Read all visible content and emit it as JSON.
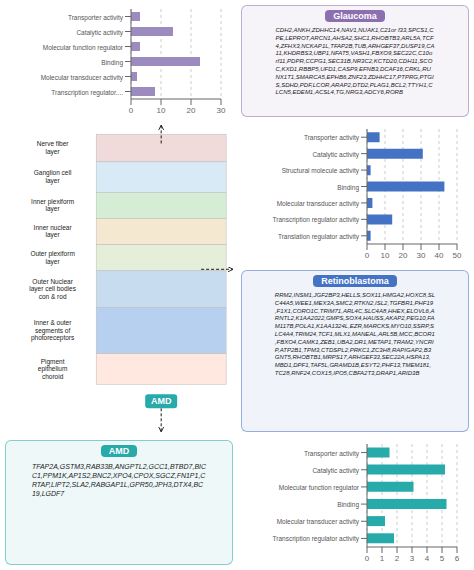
{
  "chart_data": [
    {
      "type": "bar",
      "orientation": "horizontal",
      "categories": [
        "Transporter activity",
        "Catalytic activity",
        "Molecular function regulator",
        "Binding",
        "Molecular transducer activity",
        "Transcription regulator...."
      ],
      "values": [
        3,
        14,
        3,
        23,
        2,
        8
      ],
      "color": "#9B8BBF",
      "xlim": [
        0,
        30
      ],
      "xticks": [
        0,
        10,
        20,
        30
      ],
      "grid": true
    },
    {
      "type": "text",
      "title": "Glaucoma",
      "color": "#8B6FAF",
      "annotations": [
        "CDH2,ANKH,ZDHHC14,NAV1,NUAK1,C21or f33,SPCS1,C\nPE,LEPROT,ARCN1,AHSA2,SHC1,RHOBTB3,ARL5A,TCF\n4,ZFHX3,NCKAP1L,TFAP2B,TUB,ARHGEF37,DUSP19,CA\n11,KHDRBS3,UBP1,NFAT5,VASH1,FBXO9,SEC22C,C10o\nrf11,PDPR,CCPG1,SEC31B,NR3C2,KCTD20,CDH11,SCO\nC,KXD1,RBBP5,UFD1,CASP9,EFNB3,DCAF16,CRKL,RU\nNX1T1,SMARCA5,EPHB6,ZNF23,ZDHHC17,PTPRG,PTGI\nS,SDHD,PDF,LCOR,ARAP2,DTD2,PLAG1,BCL2,TTYH1,C\nLCN5,EDEM1,ACSL4,TG,NRG3,ADCY6,RORB"
      ]
    },
    {
      "type": "diagram",
      "categories": [
        "Nerve fiber\nlayer",
        "Ganglion cell\nlayer",
        "Inner plexiform\nlayer",
        "Inner nuclear\nlayer",
        "Outer plexiform\nlayer",
        "Outer Nuclear\nlayer cell bodies\ncon & rod",
        "Inner & outer\nsegments of\nphotoreceptors",
        "Pigment\nepithelium\nchoroid"
      ],
      "colors": [
        "#F0DADA",
        "#D8EAF5",
        "#D5EDD5",
        "#F5E8D0",
        "#E5EED8",
        "#C8DCF0",
        "#B8D0F0",
        "#FFE8E0"
      ],
      "annotations": [
        "AMD"
      ],
      "color": "#26AAAA"
    },
    {
      "type": "bar",
      "orientation": "horizontal",
      "categories": [
        "Transporter activity",
        "Catalytic activity",
        "Structural molecule activity",
        "Binding",
        "Molecular transducer activity",
        "Transcription regulator activity",
        "Translation regulator activity"
      ],
      "values": [
        7,
        31,
        2,
        43,
        3,
        14,
        2
      ],
      "color": "#4472C4",
      "xlim": [
        0,
        50
      ],
      "xticks": [
        0,
        10,
        20,
        30,
        40,
        50
      ],
      "grid": true
    },
    {
      "type": "text",
      "title": "Retinoblastoma",
      "color": "#4472C4",
      "annotations": [
        "RRM2,INSM1,JGF2BP3,HELLS,SOX11,HMGA2,HOXC8,SL\nC44A5,WEE1,MEX3A,SMC2,RTKN2,ISL2,TGFBR1,PHF19\n,F1X1,CORO1C,TRIM71,ARL4C,SLC4A8,HHEX,ELOVL6,A\nRNTL2,K1AA2022,GMPS,SOX4,HAUSS,AKAP2,PEG10,FA\nM117B,POLA1,K1AA1324L,EZR,MARCKS,MYO10,SSRP,S\nLC4A4,TRIM24,TCF1,MLX1,MANEAL,ARL5B,MCC,BCOR1\n,FBXO4,CAMK1,ZEB1,UBA2,DR1,METAP1,TRAM2,YNCRI\nP,ATP2B1,TPM3,CTDSPL2,PRKC1,ZC3H8,RAPIGAP2,B3\nGNT5,RHOBTB1,MRPS17,ARHGEF33,SEC22A,HSPA13,\nMBD1,DPF1,TAF5L,GRAMD1B,ESYT2,PHF13,TMEM181,\nTC28,RNF24,COX15,IPO5,CBFA2T3,DRAP1,ARID3B"
      ]
    },
    {
      "type": "text",
      "title": "AMD",
      "color": "#26AAAA",
      "annotations": [
        "TFAP2A,GSTM3,RAB33B,ANGPTL2,GCC1,BTBD7,BIC\nC1,PPM1K,AP1S2,BNC2,XPO4,CPOX,SGCZ,FN1P1,C\nRTAP,LIPT2,SLA2,RABGAP1L,GPR50,JPH3,DTX4,BC\n19,LGDF7"
      ]
    },
    {
      "type": "bar",
      "orientation": "horizontal",
      "categories": [
        "Transporter activity",
        "Catalytic activity",
        "Molecular function regulator",
        "Binding",
        "Molecular transducer activity",
        "Transcription regulator activity"
      ],
      "values": [
        1.5,
        5.2,
        3.1,
        5.3,
        1.2,
        1.8
      ],
      "color": "#26AAAA",
      "xlim": [
        0,
        6
      ],
      "xticks": [
        0,
        1,
        2,
        3,
        4,
        5,
        6
      ],
      "grid": true
    }
  ]
}
